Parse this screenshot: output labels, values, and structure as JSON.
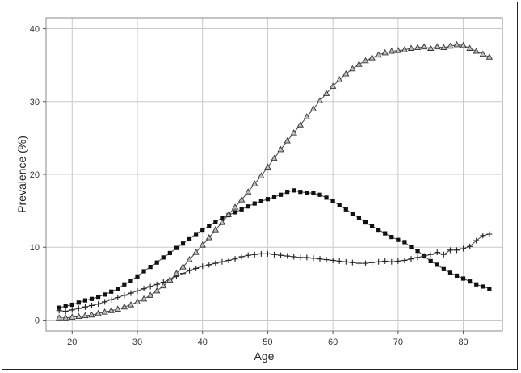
{
  "chart_data": {
    "type": "line",
    "xlabel": "Age",
    "ylabel": "Prevalence (%)",
    "xlim": [
      16,
      86
    ],
    "ylim": [
      -1.5,
      41.5
    ],
    "xticks": [
      20,
      30,
      40,
      50,
      60,
      70,
      80
    ],
    "yticks": [
      0,
      10,
      20,
      30,
      40
    ],
    "grid": true,
    "x": [
      18,
      19,
      20,
      21,
      22,
      23,
      24,
      25,
      26,
      27,
      28,
      29,
      30,
      31,
      32,
      33,
      34,
      35,
      36,
      37,
      38,
      39,
      40,
      41,
      42,
      43,
      44,
      45,
      46,
      47,
      48,
      49,
      50,
      51,
      52,
      53,
      54,
      55,
      56,
      57,
      58,
      59,
      60,
      61,
      62,
      63,
      64,
      65,
      66,
      67,
      68,
      69,
      70,
      71,
      72,
      73,
      74,
      75,
      76,
      77,
      78,
      79,
      80,
      81,
      82,
      83,
      84
    ],
    "series": [
      {
        "marker": "square",
        "values": [
          1.7,
          1.9,
          2.1,
          2.4,
          2.7,
          2.9,
          3.2,
          3.5,
          3.9,
          4.3,
          4.9,
          5.4,
          6.0,
          6.7,
          7.3,
          7.9,
          8.6,
          9.2,
          9.9,
          10.5,
          11.2,
          11.8,
          12.4,
          12.9,
          13.5,
          14.0,
          14.4,
          14.8,
          15.2,
          15.6,
          16.0,
          16.3,
          16.6,
          16.9,
          17.2,
          17.6,
          17.8,
          17.6,
          17.5,
          17.4,
          17.2,
          16.8,
          16.3,
          15.8,
          15.2,
          14.6,
          14.0,
          13.4,
          12.9,
          12.4,
          11.9,
          11.4,
          11.0,
          10.7,
          10.0,
          9.5,
          8.8,
          8.1,
          7.6,
          7.0,
          6.5,
          6.1,
          5.7,
          5.3,
          4.9,
          4.6,
          4.3
        ]
      },
      {
        "marker": "plus",
        "values": [
          1.3,
          1.2,
          1.4,
          1.6,
          1.8,
          2.0,
          2.2,
          2.5,
          2.8,
          3.1,
          3.4,
          3.7,
          4.0,
          4.3,
          4.6,
          4.9,
          5.2,
          5.6,
          6.0,
          6.4,
          6.8,
          7.1,
          7.4,
          7.6,
          7.8,
          8.0,
          8.2,
          8.4,
          8.7,
          8.9,
          9.0,
          9.1,
          9.1,
          9.0,
          8.9,
          8.8,
          8.7,
          8.6,
          8.6,
          8.5,
          8.4,
          8.3,
          8.2,
          8.1,
          8.0,
          7.9,
          7.8,
          7.8,
          7.9,
          8.0,
          8.1,
          8.0,
          8.1,
          8.2,
          8.4,
          8.6,
          8.8,
          9.0,
          9.3,
          9.0,
          9.6,
          9.6,
          9.8,
          10.1,
          10.9,
          11.6,
          11.8
        ]
      },
      {
        "marker": "triangle",
        "values": [
          0.3,
          0.3,
          0.4,
          0.5,
          0.6,
          0.7,
          0.9,
          1.1,
          1.3,
          1.5,
          1.8,
          2.1,
          2.5,
          2.9,
          3.4,
          4.0,
          4.7,
          5.5,
          6.4,
          7.3,
          8.3,
          9.3,
          10.3,
          11.3,
          12.4,
          13.4,
          14.5,
          15.5,
          16.5,
          17.6,
          18.7,
          19.8,
          21.0,
          22.2,
          23.4,
          24.6,
          25.7,
          26.8,
          27.9,
          29.0,
          30.1,
          31.1,
          32.1,
          33.0,
          33.8,
          34.5,
          35.1,
          35.6,
          36.0,
          36.4,
          36.7,
          36.9,
          37.0,
          37.1,
          37.3,
          37.4,
          37.5,
          37.3,
          37.5,
          37.4,
          37.6,
          37.8,
          37.7,
          37.3,
          36.9,
          36.5,
          36.1
        ]
      }
    ]
  }
}
